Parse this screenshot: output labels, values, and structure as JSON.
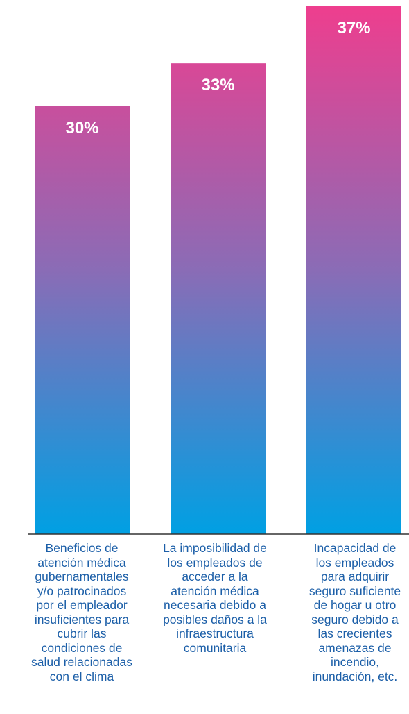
{
  "chart_data": {
    "type": "bar",
    "categories": [
      "Beneficios de\natención médica\ngubernamentales\ny/o patrocinados\npor el empleador\ninsuficientes para\ncubrir las\ncondiciones de\nsalud relacionadas\ncon el clima",
      "La imposibilidad de\nlos empleados de\nacceder a la\natención médica\nnecesaria debido a\nposibles daños a la\ninfraestructura\ncomunitaria",
      "Incapacidad de\nlos empleados\npara adquirir\nseguro suficiente\nde hogar u otro\nseguro debido a\nlas crecientes\namenazas de\nincendio,\ninundación, etc."
    ],
    "values": [
      30,
      33,
      37
    ],
    "value_labels": [
      "30%",
      "33%",
      "37%"
    ],
    "title": "",
    "xlabel": "",
    "ylabel": "",
    "ylim": [
      0,
      37
    ],
    "grid": false,
    "legend": "none",
    "colors": {
      "gradient_top": "#ee3e8e",
      "gradient_mid": "#8a6cb6",
      "gradient_bottom": "#00a0e3",
      "axis": "#333333",
      "category_text": "#1c5fa8",
      "value_text": "#ffffff"
    }
  }
}
